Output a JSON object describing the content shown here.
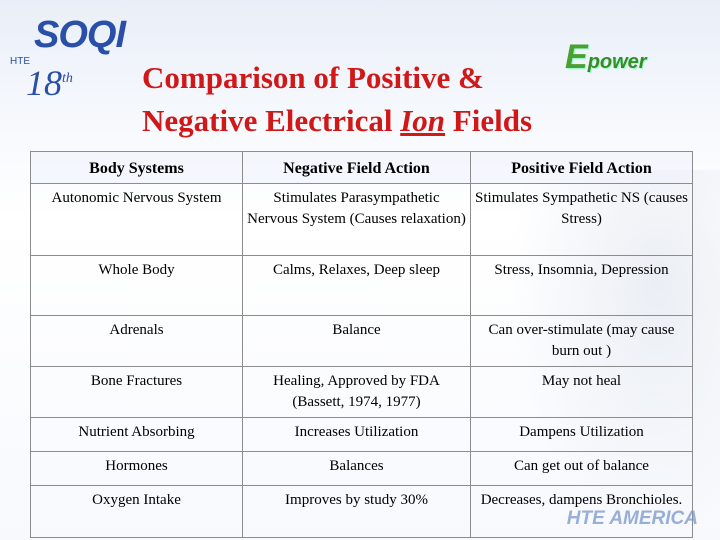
{
  "header": {
    "logo_text": "SOQI",
    "logo_sub": "HTE",
    "logo_anniv": "18",
    "logo_anniv_suffix": "th",
    "epower_e": "E",
    "epower_text": "power"
  },
  "title": {
    "line1": "Comparison of Positive &",
    "line2_pre": "Negative Electrical ",
    "line2_ion": "Ion",
    "line2_post": " Fields"
  },
  "table": {
    "headers": [
      "Body Systems",
      "Negative Field Action",
      "Positive Field Action"
    ],
    "rows": [
      [
        "Autonomic Nervous System",
        "Stimulates Parasympathetic Nervous System (Causes relaxation)",
        "Stimulates Sympathetic NS (causes Stress)"
      ],
      [
        "Whole Body",
        "Calms, Relaxes, Deep sleep",
        "Stress, Insomnia, Depression"
      ],
      [
        "Adrenals",
        "Balance",
        "Can over-stimulate (may cause burn out )"
      ],
      [
        "Bone Fractures",
        "Healing, Approved by FDA (Bassett, 1974, 1977)",
        "May not heal"
      ],
      [
        "Nutrient Absorbing",
        "Increases Utilization",
        "Dampens Utilization"
      ],
      [
        "Hormones",
        "Balances",
        "Can get out of balance"
      ],
      [
        "Oxygen Intake",
        "Improves by study 30%",
        "Decreases, dampens Bronchioles."
      ]
    ]
  },
  "footer": {
    "brand": "HTE AMERICA"
  }
}
